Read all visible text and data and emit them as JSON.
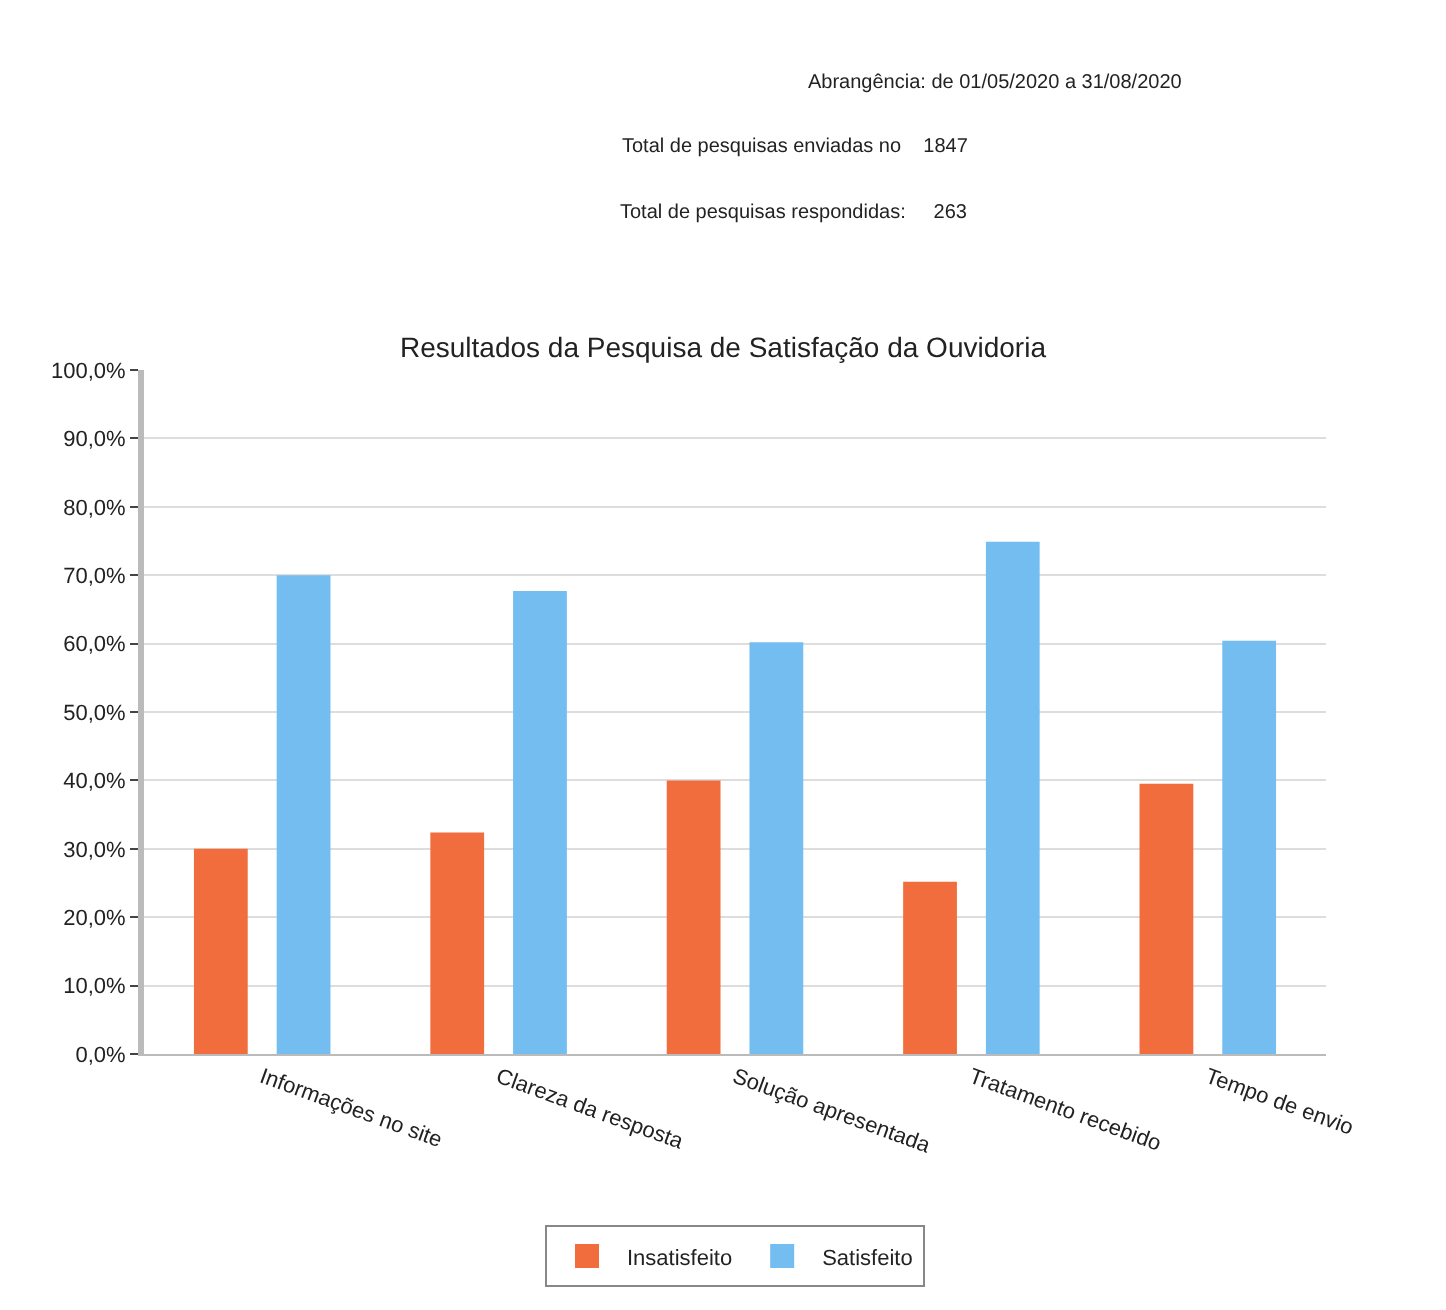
{
  "chart_data": {
    "type": "bar",
    "title": "Resultados da Pesquisa de Satisfação da Ouvidoria",
    "annotations": [
      "Abrangência: de 01/05/2020 a 31/08/2020",
      "Total de pesquisas enviadas no    1847",
      "Total de pesquisas respondidas:     263"
    ],
    "categories": [
      "Informações no site",
      "Clareza da resposta",
      "Solução apresentada",
      "Tratamento recebido",
      "Tempo de envio"
    ],
    "series": [
      {
        "name": "Insatisfeito",
        "color": "#f26d3d",
        "values": [
          30,
          32.4,
          40,
          25.2,
          39.5
        ]
      },
      {
        "name": "Satisfeito",
        "color": "#74bdf0",
        "values": [
          70,
          67.7,
          60.2,
          74.9,
          60.4
        ]
      }
    ],
    "ylim": [
      0,
      100
    ],
    "yticks": [
      {
        "value": 0,
        "label": "0,0%"
      },
      {
        "value": 10,
        "label": "10,0%"
      },
      {
        "value": 20,
        "label": "20,0%"
      },
      {
        "value": 30,
        "label": "30,0%"
      },
      {
        "value": 40,
        "label": "40,0%"
      },
      {
        "value": 50,
        "label": "50,0%"
      },
      {
        "value": 60,
        "label": "60,0%"
      },
      {
        "value": 70,
        "label": "70,0%"
      },
      {
        "value": 80,
        "label": "80,0%"
      },
      {
        "value": 90,
        "label": "90,0%"
      },
      {
        "value": 100,
        "label": "100,0%"
      }
    ],
    "grid": "y",
    "legend": "bottom"
  }
}
